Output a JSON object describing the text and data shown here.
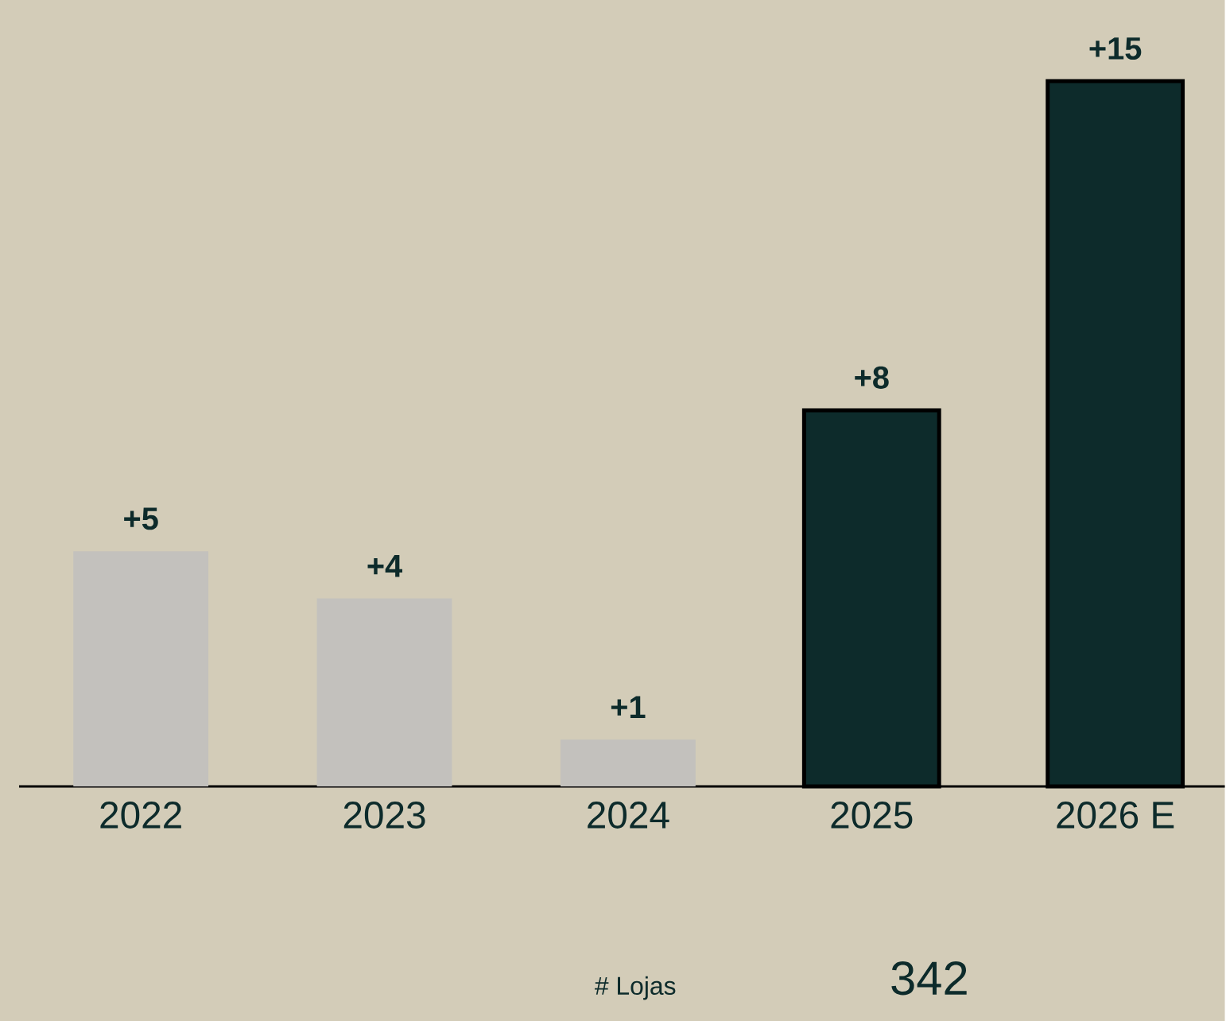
{
  "chart_data": {
    "type": "bar",
    "categories": [
      "2022",
      "2023",
      "2024",
      "2025",
      "2026 E"
    ],
    "values": [
      5,
      4,
      1,
      8,
      15
    ],
    "colors": [
      "#c3c1bd",
      "#c3c1bd",
      "#c3c1bd",
      "#0d2b2b",
      "#0d2b2b"
    ],
    "value_labels": [
      "+5",
      "+4",
      "+1",
      "+8",
      "+15"
    ],
    "annotations": [
      "# Lojas",
      "342"
    ]
  }
}
